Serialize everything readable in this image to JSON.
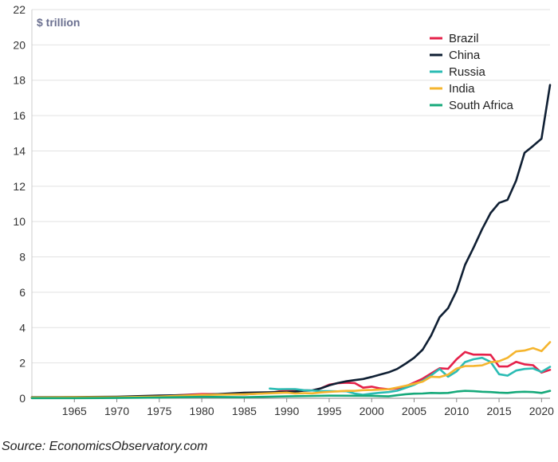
{
  "source": "Source: EconomicsObservatory.com",
  "chart_data": {
    "type": "line",
    "unit_label": "$ trillion",
    "title": "",
    "xlabel": "",
    "ylabel": "",
    "xlim": [
      1960,
      2021
    ],
    "ylim": [
      0,
      22
    ],
    "x_ticks": [
      1965,
      1970,
      1975,
      1980,
      1985,
      1990,
      1995,
      2000,
      2005,
      2010,
      2015,
      2020
    ],
    "y_ticks": [
      0,
      2,
      4,
      6,
      8,
      10,
      12,
      14,
      16,
      18,
      20,
      22
    ],
    "grid": "horizontal",
    "legend_position": "top-right",
    "series": [
      {
        "name": "Brazil",
        "color": "#e5214a",
        "points": [
          [
            1960,
            0.02
          ],
          [
            1965,
            0.03
          ],
          [
            1970,
            0.04
          ],
          [
            1975,
            0.12
          ],
          [
            1980,
            0.24
          ],
          [
            1985,
            0.22
          ],
          [
            1988,
            0.3
          ],
          [
            1990,
            0.46
          ],
          [
            1993,
            0.44
          ],
          [
            1994,
            0.56
          ],
          [
            1995,
            0.77
          ],
          [
            1996,
            0.85
          ],
          [
            1997,
            0.88
          ],
          [
            1998,
            0.86
          ],
          [
            1999,
            0.6
          ],
          [
            2000,
            0.66
          ],
          [
            2001,
            0.56
          ],
          [
            2002,
            0.51
          ],
          [
            2003,
            0.56
          ],
          [
            2004,
            0.67
          ],
          [
            2005,
            0.89
          ],
          [
            2006,
            1.11
          ],
          [
            2007,
            1.4
          ],
          [
            2008,
            1.7
          ],
          [
            2009,
            1.67
          ],
          [
            2010,
            2.21
          ],
          [
            2011,
            2.62
          ],
          [
            2012,
            2.47
          ],
          [
            2013,
            2.47
          ],
          [
            2014,
            2.46
          ],
          [
            2015,
            1.8
          ],
          [
            2016,
            1.8
          ],
          [
            2017,
            2.06
          ],
          [
            2018,
            1.92
          ],
          [
            2019,
            1.87
          ],
          [
            2020,
            1.45
          ],
          [
            2021,
            1.61
          ]
        ]
      },
      {
        "name": "China",
        "color": "#0f1f33",
        "points": [
          [
            1960,
            0.06
          ],
          [
            1965,
            0.07
          ],
          [
            1970,
            0.09
          ],
          [
            1975,
            0.16
          ],
          [
            1980,
            0.19
          ],
          [
            1985,
            0.31
          ],
          [
            1990,
            0.36
          ],
          [
            1991,
            0.38
          ],
          [
            1992,
            0.43
          ],
          [
            1993,
            0.44
          ],
          [
            1994,
            0.56
          ],
          [
            1995,
            0.73
          ],
          [
            1996,
            0.86
          ],
          [
            1997,
            0.96
          ],
          [
            1998,
            1.03
          ],
          [
            1999,
            1.09
          ],
          [
            2000,
            1.21
          ],
          [
            2001,
            1.34
          ],
          [
            2002,
            1.47
          ],
          [
            2003,
            1.66
          ],
          [
            2004,
            1.96
          ],
          [
            2005,
            2.29
          ],
          [
            2006,
            2.75
          ],
          [
            2007,
            3.55
          ],
          [
            2008,
            4.59
          ],
          [
            2009,
            5.1
          ],
          [
            2010,
            6.09
          ],
          [
            2011,
            7.55
          ],
          [
            2012,
            8.53
          ],
          [
            2013,
            9.57
          ],
          [
            2014,
            10.48
          ],
          [
            2015,
            11.06
          ],
          [
            2016,
            11.23
          ],
          [
            2017,
            12.31
          ],
          [
            2018,
            13.89
          ],
          [
            2019,
            14.28
          ],
          [
            2020,
            14.69
          ],
          [
            2021,
            17.73
          ]
        ]
      },
      {
        "name": "Russia",
        "color": "#2bbcb4",
        "points": [
          [
            1988,
            0.55
          ],
          [
            1989,
            0.51
          ],
          [
            1990,
            0.52
          ],
          [
            1991,
            0.52
          ],
          [
            1992,
            0.46
          ],
          [
            1993,
            0.44
          ],
          [
            1994,
            0.4
          ],
          [
            1995,
            0.4
          ],
          [
            1996,
            0.39
          ],
          [
            1997,
            0.4
          ],
          [
            1998,
            0.27
          ],
          [
            1999,
            0.2
          ],
          [
            2000,
            0.26
          ],
          [
            2001,
            0.31
          ],
          [
            2002,
            0.35
          ],
          [
            2003,
            0.43
          ],
          [
            2004,
            0.59
          ],
          [
            2005,
            0.76
          ],
          [
            2006,
            0.99
          ],
          [
            2007,
            1.3
          ],
          [
            2008,
            1.66
          ],
          [
            2009,
            1.22
          ],
          [
            2010,
            1.52
          ],
          [
            2011,
            2.05
          ],
          [
            2012,
            2.21
          ],
          [
            2013,
            2.29
          ],
          [
            2014,
            2.06
          ],
          [
            2015,
            1.36
          ],
          [
            2016,
            1.28
          ],
          [
            2017,
            1.57
          ],
          [
            2018,
            1.66
          ],
          [
            2019,
            1.69
          ],
          [
            2020,
            1.49
          ],
          [
            2021,
            1.78
          ]
        ]
      },
      {
        "name": "India",
        "color": "#f5b52e",
        "points": [
          [
            1960,
            0.04
          ],
          [
            1965,
            0.06
          ],
          [
            1970,
            0.06
          ],
          [
            1975,
            0.1
          ],
          [
            1980,
            0.19
          ],
          [
            1985,
            0.23
          ],
          [
            1990,
            0.32
          ],
          [
            1991,
            0.27
          ],
          [
            1992,
            0.29
          ],
          [
            1993,
            0.28
          ],
          [
            1994,
            0.33
          ],
          [
            1995,
            0.36
          ],
          [
            1996,
            0.39
          ],
          [
            1997,
            0.42
          ],
          [
            1998,
            0.42
          ],
          [
            1999,
            0.46
          ],
          [
            2000,
            0.47
          ],
          [
            2001,
            0.49
          ],
          [
            2002,
            0.51
          ],
          [
            2003,
            0.61
          ],
          [
            2004,
            0.71
          ],
          [
            2005,
            0.82
          ],
          [
            2006,
            0.94
          ],
          [
            2007,
            1.22
          ],
          [
            2008,
            1.2
          ],
          [
            2009,
            1.34
          ],
          [
            2010,
            1.68
          ],
          [
            2011,
            1.82
          ],
          [
            2012,
            1.83
          ],
          [
            2013,
            1.86
          ],
          [
            2014,
            2.04
          ],
          [
            2015,
            2.1
          ],
          [
            2016,
            2.29
          ],
          [
            2017,
            2.65
          ],
          [
            2018,
            2.7
          ],
          [
            2019,
            2.84
          ],
          [
            2020,
            2.67
          ],
          [
            2021,
            3.18
          ]
        ]
      },
      {
        "name": "South Africa",
        "color": "#16a97a",
        "points": [
          [
            1960,
            0.01
          ],
          [
            1965,
            0.01
          ],
          [
            1970,
            0.02
          ],
          [
            1975,
            0.04
          ],
          [
            1980,
            0.08
          ],
          [
            1985,
            0.06
          ],
          [
            1990,
            0.11
          ],
          [
            1995,
            0.15
          ],
          [
            2000,
            0.14
          ],
          [
            2001,
            0.12
          ],
          [
            2002,
            0.11
          ],
          [
            2003,
            0.17
          ],
          [
            2004,
            0.23
          ],
          [
            2005,
            0.26
          ],
          [
            2006,
            0.27
          ],
          [
            2007,
            0.3
          ],
          [
            2008,
            0.29
          ],
          [
            2009,
            0.3
          ],
          [
            2010,
            0.38
          ],
          [
            2011,
            0.42
          ],
          [
            2012,
            0.4
          ],
          [
            2013,
            0.37
          ],
          [
            2014,
            0.35
          ],
          [
            2015,
            0.32
          ],
          [
            2016,
            0.3
          ],
          [
            2017,
            0.35
          ],
          [
            2018,
            0.37
          ],
          [
            2019,
            0.35
          ],
          [
            2020,
            0.3
          ],
          [
            2021,
            0.42
          ]
        ]
      }
    ]
  }
}
